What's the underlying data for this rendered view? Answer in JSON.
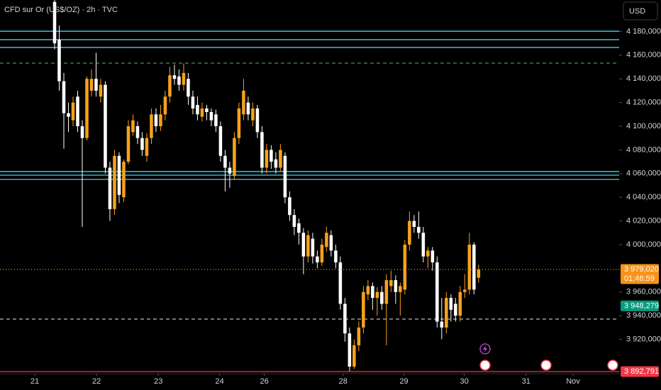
{
  "chart_data": {
    "type": "candlestick",
    "title": "CFD sur Or (US$/OZ) · 2h · TVC",
    "currency_button": "USD",
    "up_color": "#f7a21b",
    "down_color": "#ffffff",
    "x": [
      0,
      1,
      2,
      3,
      4,
      5,
      6,
      7,
      8,
      9,
      10,
      11,
      12,
      13,
      14,
      15,
      16,
      17,
      18,
      19,
      20,
      21,
      22,
      23,
      24,
      25,
      26,
      27,
      28,
      29,
      30,
      31,
      32,
      33,
      34,
      35,
      36,
      37,
      38,
      39,
      40,
      41,
      42,
      43,
      44,
      45,
      46,
      47,
      48,
      49,
      50,
      51,
      52,
      53,
      54,
      55,
      56,
      57,
      58,
      59,
      60,
      61,
      62,
      63,
      64,
      65,
      66,
      67,
      68,
      69,
      70,
      71,
      72,
      73,
      74,
      75,
      76,
      77,
      78,
      79,
      80,
      81,
      82,
      83,
      84,
      85,
      86,
      87,
      88,
      89,
      90,
      91,
      92
    ],
    "open": [
      4205,
      4173,
      4138,
      4111,
      4105,
      4125,
      4100,
      4090,
      4130,
      4140,
      4125,
      4135,
      4065,
      4030,
      4075,
      4040,
      4070,
      4095,
      4100,
      4090,
      4075,
      4090,
      4110,
      4100,
      4110,
      4125,
      4143,
      4142,
      4135,
      4140,
      4125,
      4118,
      4108,
      4115,
      4112,
      4110,
      4100,
      4075,
      4065,
      4058,
      4090,
      4110,
      4120,
      4105,
      4115,
      4095,
      4065,
      4080,
      4072,
      4065,
      4075,
      4040,
      4025,
      4018,
      4010,
      3990,
      4005,
      3990,
      3985,
      3998,
      4008,
      3995,
      3985,
      3950,
      3925,
      3897,
      3915,
      3930,
      3958,
      3965,
      3955,
      3960,
      3950,
      3965,
      3970,
      3960,
      3962,
      4000,
      4020,
      4015,
      4010,
      3990,
      3995,
      3985,
      3935,
      3930,
      3955,
      3950,
      3940,
      3960,
      3962,
      4000,
      3972
    ],
    "high": [
      4207,
      4185,
      4145,
      4120,
      4125,
      4130,
      4105,
      4142,
      4148,
      4162,
      4140,
      4138,
      4070,
      4080,
      4078,
      4072,
      4105,
      4110,
      4104,
      4095,
      4094,
      4115,
      4115,
      4118,
      4130,
      4150,
      4152,
      4148,
      4153,
      4145,
      4130,
      4125,
      4120,
      4118,
      4115,
      4114,
      4104,
      4080,
      4070,
      4095,
      4120,
      4140,
      4125,
      4120,
      4118,
      4100,
      4085,
      4084,
      4078,
      4085,
      4078,
      4045,
      4030,
      4022,
      4014,
      4012,
      4010,
      3995,
      4005,
      4015,
      4012,
      4000,
      3990,
      3955,
      3930,
      3920,
      3935,
      3965,
      3970,
      3968,
      3964,
      3965,
      3975,
      3978,
      3974,
      3968,
      4004,
      4028,
      4025,
      4028,
      4015,
      3998,
      3998,
      3990,
      3955,
      3960,
      3958,
      3955,
      3965,
      3975,
      4010,
      4002,
      3983
    ],
    "low": [
      4165,
      4130,
      4081,
      4095,
      4100,
      4095,
      4015,
      4088,
      4125,
      4125,
      4120,
      4060,
      4020,
      4025,
      4035,
      4036,
      4068,
      4092,
      4085,
      4075,
      4070,
      4085,
      4095,
      4096,
      4105,
      4120,
      4135,
      4130,
      4130,
      4118,
      4110,
      4105,
      4104,
      4105,
      4100,
      4095,
      4070,
      4045,
      4048,
      4055,
      4085,
      4105,
      4105,
      4100,
      4090,
      4060,
      4060,
      4064,
      4060,
      4062,
      4035,
      4020,
      4008,
      4000,
      3975,
      3985,
      3984,
      3980,
      3982,
      3994,
      3990,
      3980,
      3945,
      3918,
      3893,
      3895,
      3910,
      3925,
      3953,
      3945,
      3940,
      3945,
      3915,
      3960,
      3950,
      3940,
      3958,
      3995,
      4010,
      4005,
      3985,
      3980,
      3978,
      3930,
      3920,
      3925,
      3935,
      3935,
      3935,
      3955,
      3958,
      3958,
      3968
    ],
    "close": [
      4170,
      4138,
      4111,
      4108,
      4120,
      4100,
      4090,
      4140,
      4140,
      4130,
      4135,
      4065,
      4030,
      4075,
      4042,
      4070,
      4100,
      4105,
      4090,
      4080,
      4090,
      4110,
      4100,
      4110,
      4125,
      4143,
      4140,
      4135,
      4145,
      4125,
      4115,
      4110,
      4115,
      4112,
      4105,
      4100,
      4075,
      4065,
      4060,
      4090,
      4115,
      4130,
      4110,
      4115,
      4095,
      4065,
      4080,
      4070,
      4065,
      4080,
      4040,
      4025,
      4015,
      4010,
      3990,
      4008,
      3990,
      3985,
      4000,
      4010,
      3995,
      3985,
      3950,
      3925,
      3897,
      3915,
      3930,
      3960,
      3965,
      3955,
      3960,
      3950,
      3970,
      3970,
      3960,
      3965,
      4000,
      4020,
      4015,
      4010,
      3990,
      3995,
      3985,
      3935,
      3930,
      3955,
      3945,
      3940,
      3960,
      3962,
      4000,
      3962,
      3979
    ],
    "xlim": [
      -11.85,
      122.5
    ],
    "xticks": [
      {
        "value": -4.3,
        "label": "21"
      },
      {
        "value": 9.1,
        "label": "22"
      },
      {
        "value": 22.5,
        "label": "23"
      },
      {
        "value": 35.8,
        "label": "24"
      },
      {
        "value": 45.5,
        "label": "26"
      },
      {
        "value": 62.6,
        "label": "28"
      },
      {
        "value": 75.8,
        "label": "29"
      },
      {
        "value": 88.9,
        "label": "30"
      },
      {
        "value": 102.3,
        "label": "31"
      },
      {
        "value": 112.5,
        "label": "Nov"
      }
    ],
    "ylim": [
      3892.2,
      4206.6
    ],
    "yticks": [
      {
        "value": 4180,
        "label": "4 180,000"
      },
      {
        "value": 4160,
        "label": "4 160,000"
      },
      {
        "value": 4140,
        "label": "4 140,000"
      },
      {
        "value": 4120,
        "label": "4 120,000"
      },
      {
        "value": 4100,
        "label": "4 100,000"
      },
      {
        "value": 4080,
        "label": "4 080,000"
      },
      {
        "value": 4060,
        "label": "4 060,000"
      },
      {
        "value": 4040,
        "label": "4 040,000"
      },
      {
        "value": 4020,
        "label": "4 020,000"
      },
      {
        "value": 4000,
        "label": "4 000,000"
      },
      {
        "value": 3960,
        "label": "3 960,000"
      },
      {
        "value": 3940,
        "label": "3 940,000"
      },
      {
        "value": 3920,
        "label": "3 920,000"
      }
    ],
    "levels": [
      {
        "value": 4180.2,
        "color": "#4dd0e1",
        "style": "solid"
      },
      {
        "value": 4173.1,
        "color": "#4dd0e1",
        "style": "solid"
      },
      {
        "value": 4166.5,
        "color": "#4dd0e1",
        "style": "solid"
      },
      {
        "value": 4153.3,
        "color": "#5b8c3a",
        "style": "dashed"
      },
      {
        "value": 4061.7,
        "color": "#4dd0e1",
        "style": "solid"
      },
      {
        "value": 4058.7,
        "color": "#4dd0e1",
        "style": "solid"
      },
      {
        "value": 4055.1,
        "color": "#4dd0e1",
        "style": "solid"
      },
      {
        "value": 3937.1,
        "color": "#bbbbbb",
        "style": "dashed"
      }
    ],
    "price_labels": [
      {
        "value": 3979.02,
        "label": "3 979,020",
        "color": "#f7931a",
        "line": "dotted",
        "countdown": "01:46:59"
      },
      {
        "value": 3948.279,
        "label": "3 948,279",
        "color": "#089981"
      },
      {
        "value": 3892.791,
        "label": "3 892,791",
        "color": "#f23645",
        "line": "solid"
      }
    ]
  }
}
